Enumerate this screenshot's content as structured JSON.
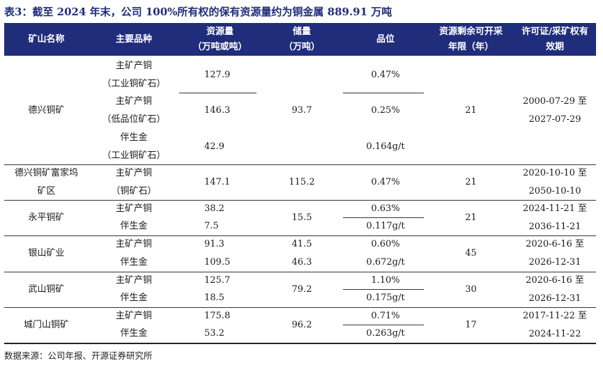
{
  "title": "表3：截至 2024 年末，公司 100%所有权的保有资源量约为铜金属 889.91 万吨",
  "header": {
    "col1": "矿山名称",
    "col2": "主要品种",
    "col3_l1": "资源量",
    "col3_l2": "（万吨或吨）",
    "col4_l1": "储量",
    "col4_l2": "（万吨）",
    "col5": "品位",
    "col6_l1": "资源剩余可开采",
    "col6_l2": "年限（年）",
    "col7_l1": "许可证/采矿权有",
    "col7_l2": "效期"
  },
  "mines": [
    {
      "name": "德兴铜矿",
      "rows": [
        {
          "v1": "主矿产铜",
          "v2": "（工业铜矿石）",
          "resource": "127.9",
          "grade": "0.47%"
        },
        {
          "v1": "主矿产铜",
          "v2": "（低品位矿石）",
          "resource": "146.3",
          "grade": "0.25%"
        },
        {
          "v1": "伴生金",
          "v2": "（工业铜矿石）",
          "resource": "42.9",
          "grade": "0.164g/t"
        }
      ],
      "reserve": "93.7",
      "years": "21",
      "validity_l1": "2000-07-29 至",
      "validity_l2": "2027-07-29"
    },
    {
      "name_l1": "德兴铜矿富家坞",
      "name_l2": "矿区",
      "rows": [
        {
          "v1": "主矿产铜",
          "v2": "（铜矿石）",
          "resource": "147.1",
          "grade": "0.47%"
        }
      ],
      "reserve": "115.2",
      "years": "21",
      "validity_l1": "2020-10-10 至",
      "validity_l2": "2050-10-10"
    },
    {
      "name": "永平铜矿",
      "rows": [
        {
          "v1": "主矿产铜",
          "resource": "38.2",
          "grade": "0.63%"
        },
        {
          "v1": "伴生金",
          "resource": "7.5",
          "grade": "0.117g/t"
        }
      ],
      "reserve": "15.5",
      "years": "21",
      "validity_l1": "2024-11-21 至",
      "validity_l2": "2036-11-21"
    },
    {
      "name": "银山矿业",
      "rows": [
        {
          "v1": "主矿产铜",
          "resource": "91.3",
          "reserve": "41.5",
          "grade": "0.60%"
        },
        {
          "v1": "伴生金",
          "resource": "109.5",
          "reserve": "46.3",
          "grade": "0.672g/t"
        }
      ],
      "years": "45",
      "validity_l1": "2020-6-16 至",
      "validity_l2": "2026-12-31"
    },
    {
      "name": "武山铜矿",
      "rows": [
        {
          "v1": "主矿产铜",
          "resource": "125.7",
          "grade": "1.10%"
        },
        {
          "v1": "伴生金",
          "resource": "18.5",
          "grade": "0.175g/t"
        }
      ],
      "reserve": "79.2",
      "years": "30",
      "validity_l1": "2020-6-16 至",
      "validity_l2": "2026-12-31"
    },
    {
      "name": "城门山铜矿",
      "rows": [
        {
          "v1": "主矿产铜",
          "resource": "175.8",
          "grade": "0.71%"
        },
        {
          "v1": "伴生金",
          "resource": "53.2",
          "grade": "0.263g/t"
        }
      ],
      "reserve": "96.2",
      "years": "17",
      "validity_l1": "2017-11-22 至",
      "validity_l2": "2024-11-22"
    }
  ],
  "source": "数据来源：公司年报、开源证券研究所"
}
